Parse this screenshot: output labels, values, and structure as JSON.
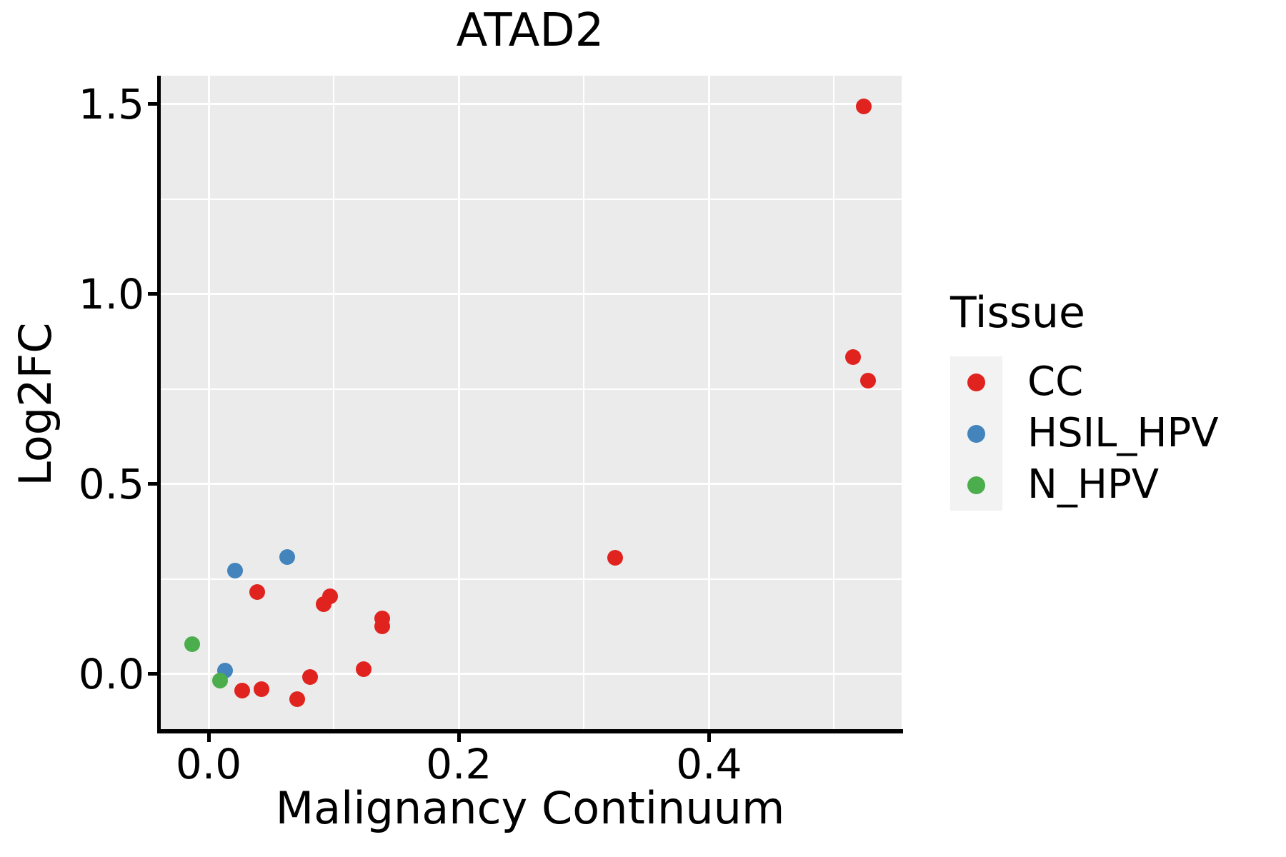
{
  "chart_data": {
    "type": "scatter",
    "title": "ATAD2",
    "xlabel": "Malignancy Continuum",
    "ylabel": "Log2FC",
    "xlim": [
      -0.04,
      0.554
    ],
    "ylim": [
      -0.145,
      1.575
    ],
    "grid": true,
    "background": "gray-panel",
    "legend_position": "right",
    "x_ticks": {
      "values": [
        0.0,
        0.2,
        0.4
      ],
      "labels": [
        "0.0",
        "0.2",
        "0.4"
      ],
      "minor": [
        0.1,
        0.3,
        0.5
      ]
    },
    "y_ticks": {
      "values": [
        0.0,
        0.5,
        1.0,
        1.5
      ],
      "labels": [
        "0.0",
        "0.5",
        "1.0",
        "1.5"
      ],
      "minor": [
        0.25,
        0.75,
        1.25
      ]
    },
    "series": [
      {
        "name": "CC",
        "color": "#e0231e",
        "points": [
          [
            0.524,
            1.494
          ],
          [
            0.515,
            0.835
          ],
          [
            0.527,
            0.773
          ],
          [
            0.325,
            0.306
          ],
          [
            0.039,
            0.216
          ],
          [
            0.097,
            0.205
          ],
          [
            0.092,
            0.184
          ],
          [
            0.139,
            0.147
          ],
          [
            0.139,
            0.126
          ],
          [
            0.027,
            -0.043
          ],
          [
            0.042,
            -0.039
          ],
          [
            0.071,
            -0.066
          ],
          [
            0.081,
            -0.008
          ],
          [
            0.124,
            0.013
          ]
        ]
      },
      {
        "name": "HSIL_HPV",
        "color": "#4384bd",
        "points": [
          [
            0.063,
            0.308
          ],
          [
            0.021,
            0.273
          ],
          [
            0.013,
            0.009
          ]
        ]
      },
      {
        "name": "N_HPV",
        "color": "#4cad4c",
        "points": [
          [
            -0.013,
            0.079
          ],
          [
            0.009,
            -0.017
          ]
        ]
      }
    ]
  },
  "legend": {
    "title": "Tissue"
  },
  "colors": {
    "plot_background": "#ebebeb",
    "gridline": "#ffffff",
    "legend_key_background": "#f2f2f2",
    "axis": "#000000",
    "cc": "#e0231e",
    "hsil_hpv": "#4384bd",
    "n_hpv": "#4cad4c"
  }
}
